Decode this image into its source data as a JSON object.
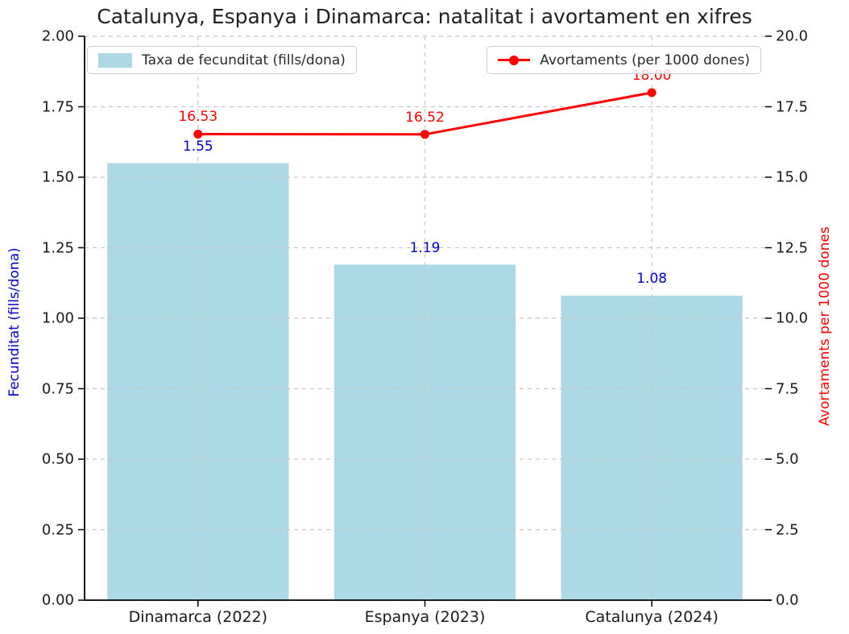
{
  "chart_data": {
    "type": "bar+line",
    "title": "Catalunya, Espanya i Dinamarca: natalitat i avortament en xifres",
    "categories": [
      "Dinamarca (2022)",
      "Espanya (2023)",
      "Catalunya (2024)"
    ],
    "series": [
      {
        "name": "Taxa de fecunditat (fills/dona)",
        "type": "bar",
        "axis": "left",
        "values": [
          1.55,
          1.19,
          1.08
        ],
        "value_labels": [
          "1.55",
          "1.19",
          "1.08"
        ]
      },
      {
        "name": "Avortaments (per 1000 dones)",
        "type": "line",
        "axis": "right",
        "values": [
          16.53,
          16.52,
          18.0
        ],
        "value_labels": [
          "16.53",
          "16.52",
          "18.00"
        ]
      }
    ],
    "left_axis": {
      "label": "Fecunditat (fills/dona)",
      "min": 0,
      "max": 2,
      "ticks": [
        "0.00",
        "0.25",
        "0.50",
        "0.75",
        "1.00",
        "1.25",
        "1.50",
        "1.75",
        "2.00"
      ]
    },
    "right_axis": {
      "label": "Avortaments per 1000 dones",
      "min": 0,
      "max": 20,
      "ticks": [
        "0.0",
        "2.5",
        "5.0",
        "7.5",
        "10.0",
        "12.5",
        "15.0",
        "17.5",
        "20.0"
      ]
    },
    "grid": "dashed",
    "legend": [
      {
        "label": "Taxa de fecunditat (fills/dona)",
        "marker": "bar-swatch",
        "position": "upper-left"
      },
      {
        "label": "Avortaments (per 1000 dones)",
        "marker": "line-dot",
        "position": "upper-right"
      }
    ]
  },
  "colors": {
    "bar_fill": "#ADD8E6",
    "line": "#FF0000",
    "bar_value_label": "#0000CD",
    "line_value_label": "#FF0000",
    "left_axis_title": "#0000CD",
    "right_axis_title": "#FF0000",
    "tick_text": "#1a1a1a",
    "grid": "#c8c8c8",
    "axis_line": "#000000"
  }
}
